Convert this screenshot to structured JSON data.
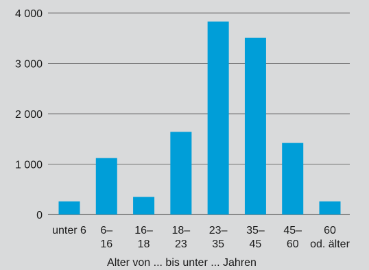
{
  "chart_data": {
    "type": "bar",
    "title": "",
    "xlabel": "Alter von ... bis unter ... Jahren",
    "ylabel": "",
    "ylim": [
      0,
      4000
    ],
    "yticks": [
      0,
      1000,
      2000,
      3000,
      4000
    ],
    "ytick_labels": [
      "0",
      "1 000",
      "2 000",
      "3 000",
      "4 000"
    ],
    "grid": true,
    "categories": [
      [
        "unter 6"
      ],
      [
        "6–",
        "16"
      ],
      [
        "16–",
        "18"
      ],
      [
        "18–",
        "23"
      ],
      [
        "23–",
        "35"
      ],
      [
        "35–",
        "45"
      ],
      [
        "45–",
        "60"
      ],
      [
        "60",
        "od. älter"
      ]
    ],
    "values": [
      260,
      1120,
      350,
      1640,
      3830,
      3510,
      1420,
      260
    ],
    "colors": {
      "bar": "#009ed8",
      "background": "#d9dadb",
      "grid": "#6f6f6f",
      "text": "#1a1a1a"
    }
  }
}
